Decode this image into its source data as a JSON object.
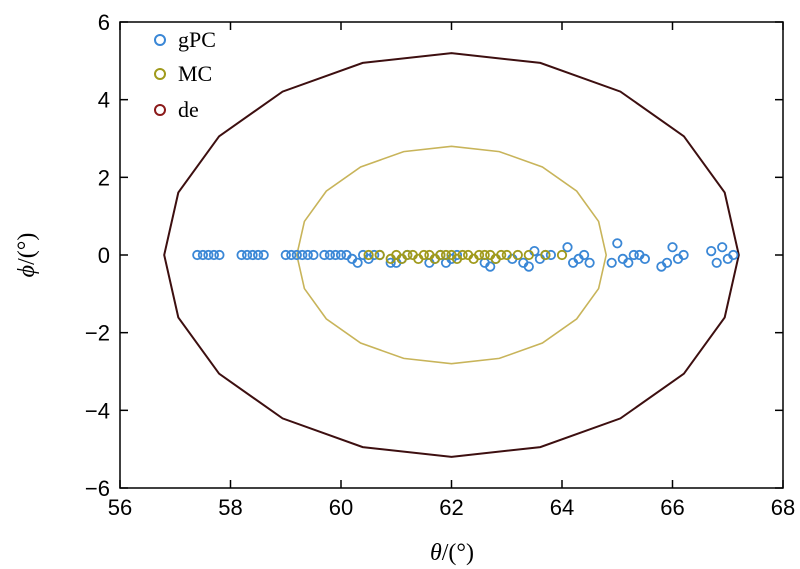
{
  "chart_data": {
    "type": "scatter",
    "xlabel_symbol": "θ",
    "xlabel_unit": "/(°)",
    "ylabel_symbol": "ϕ",
    "ylabel_unit": "/(°)",
    "xlim": [
      56,
      68
    ],
    "ylim": [
      -6,
      6
    ],
    "x_ticks": [
      "56",
      "58",
      "60",
      "62",
      "64",
      "66",
      "68"
    ],
    "y_ticks": [
      "−6",
      "−4",
      "−2",
      "0",
      "2",
      "4",
      "6"
    ],
    "grid": false,
    "legend_position": "top-left",
    "series": [
      {
        "name": "gPC",
        "kind": "scatter",
        "color": "#3a87d6",
        "points": [
          [
            57.4,
            0
          ],
          [
            57.5,
            0
          ],
          [
            57.6,
            0
          ],
          [
            57.7,
            0
          ],
          [
            57.8,
            0
          ],
          [
            58.2,
            0
          ],
          [
            58.3,
            0
          ],
          [
            58.4,
            0
          ],
          [
            58.5,
            0
          ],
          [
            58.6,
            0
          ],
          [
            59.0,
            0
          ],
          [
            59.1,
            0
          ],
          [
            59.2,
            0
          ],
          [
            59.3,
            0
          ],
          [
            59.4,
            0
          ],
          [
            59.5,
            0
          ],
          [
            59.7,
            0
          ],
          [
            59.8,
            0
          ],
          [
            59.9,
            0
          ],
          [
            60.0,
            0
          ],
          [
            60.1,
            0
          ],
          [
            60.2,
            -0.1
          ],
          [
            60.3,
            -0.2
          ],
          [
            60.4,
            0
          ],
          [
            60.5,
            -0.1
          ],
          [
            60.6,
            0
          ],
          [
            60.7,
            0
          ],
          [
            60.9,
            -0.2
          ],
          [
            61.0,
            -0.2
          ],
          [
            61.1,
            -0.1
          ],
          [
            61.2,
            0
          ],
          [
            61.6,
            -0.2
          ],
          [
            61.7,
            -0.1
          ],
          [
            61.8,
            0
          ],
          [
            61.9,
            -0.2
          ],
          [
            62.0,
            -0.1
          ],
          [
            62.1,
            0
          ],
          [
            62.6,
            -0.2
          ],
          [
            62.7,
            -0.3
          ],
          [
            62.8,
            -0.1
          ],
          [
            63.1,
            -0.1
          ],
          [
            63.3,
            -0.2
          ],
          [
            63.4,
            -0.3
          ],
          [
            63.5,
            0.1
          ],
          [
            63.6,
            -0.1
          ],
          [
            63.7,
            0
          ],
          [
            63.8,
            0
          ],
          [
            64.1,
            0.2
          ],
          [
            64.2,
            -0.2
          ],
          [
            64.3,
            -0.1
          ],
          [
            64.4,
            0
          ],
          [
            64.5,
            -0.2
          ],
          [
            64.9,
            -0.2
          ],
          [
            65.0,
            0.3
          ],
          [
            65.1,
            -0.1
          ],
          [
            65.2,
            -0.2
          ],
          [
            65.3,
            0
          ],
          [
            65.4,
            0
          ],
          [
            65.5,
            -0.1
          ],
          [
            65.8,
            -0.3
          ],
          [
            65.9,
            -0.2
          ],
          [
            66.0,
            0.2
          ],
          [
            66.1,
            -0.1
          ],
          [
            66.2,
            0
          ],
          [
            66.7,
            0.1
          ],
          [
            66.8,
            -0.2
          ],
          [
            66.9,
            0.2
          ],
          [
            67.0,
            -0.1
          ],
          [
            67.1,
            0
          ]
        ]
      },
      {
        "name": "MC",
        "kind": "scatter",
        "color": "#a09a1c",
        "points": [
          [
            60.5,
            0
          ],
          [
            60.7,
            0
          ],
          [
            60.9,
            -0.1
          ],
          [
            61.0,
            0
          ],
          [
            61.1,
            -0.1
          ],
          [
            61.2,
            0
          ],
          [
            61.3,
            0
          ],
          [
            61.4,
            -0.1
          ],
          [
            61.5,
            0
          ],
          [
            61.6,
            0
          ],
          [
            61.7,
            -0.1
          ],
          [
            61.8,
            0
          ],
          [
            61.9,
            0
          ],
          [
            62.0,
            0
          ],
          [
            62.1,
            -0.1
          ],
          [
            62.2,
            0
          ],
          [
            62.3,
            0
          ],
          [
            62.4,
            -0.1
          ],
          [
            62.5,
            0
          ],
          [
            62.6,
            0
          ],
          [
            62.7,
            0
          ],
          [
            62.8,
            -0.1
          ],
          [
            62.9,
            0
          ],
          [
            63.0,
            0
          ],
          [
            63.2,
            0
          ],
          [
            63.4,
            0
          ],
          [
            63.7,
            0
          ],
          [
            64.0,
            0
          ]
        ]
      },
      {
        "name": "de",
        "kind": "marker-only",
        "color": "#8b1a1a",
        "points": []
      }
    ],
    "ellipses": [
      {
        "label": "outer boundary",
        "color": "#3d0f10",
        "cx": 62,
        "cy": 0,
        "rx": 5.2,
        "ry": 5.2
      },
      {
        "label": "inner boundary",
        "color": "#c8b45a",
        "cx": 62,
        "cy": 0,
        "rx": 2.8,
        "ry": 2.8
      }
    ]
  }
}
